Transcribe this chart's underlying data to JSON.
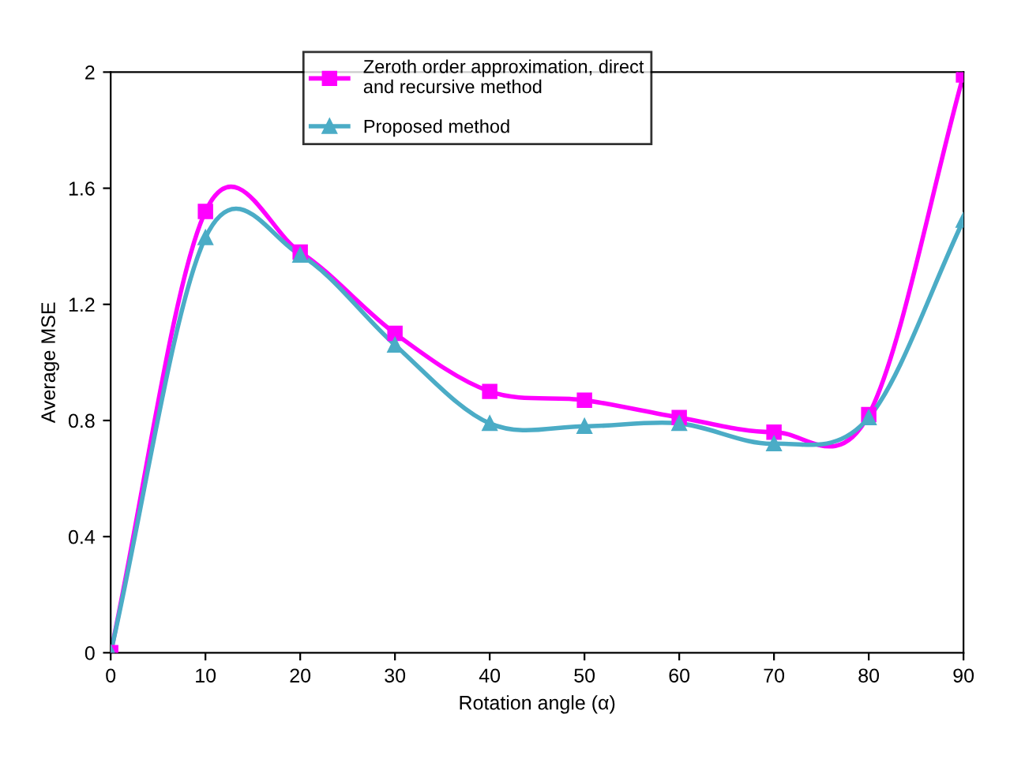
{
  "chart_data": {
    "type": "line",
    "xlabel": "Rotation angle (α)",
    "ylabel": "Average MSE",
    "x": [
      0,
      10,
      20,
      30,
      40,
      50,
      60,
      70,
      80,
      90
    ],
    "series": [
      {
        "name": "Zeroth order approximation, direct\nand recursive method",
        "color": "#ff00ff",
        "marker": "square",
        "values": [
          0,
          1.52,
          1.38,
          1.1,
          0.9,
          0.87,
          0.81,
          0.76,
          0.82,
          1.99
        ]
      },
      {
        "name": "Proposed method",
        "color": "#4bacc6",
        "marker": "triangle",
        "values": [
          0,
          1.43,
          1.37,
          1.06,
          0.79,
          0.78,
          0.79,
          0.72,
          0.81,
          1.49
        ]
      }
    ],
    "xlim": [
      0,
      90
    ],
    "xticks": [
      0,
      10,
      20,
      30,
      40,
      50,
      60,
      70,
      80,
      90
    ],
    "ylim": [
      0,
      2
    ],
    "yticks": [
      0,
      0.4,
      0.8,
      1.2,
      1.6,
      2
    ],
    "grid": false,
    "legend": "top",
    "line_style": "solid"
  }
}
